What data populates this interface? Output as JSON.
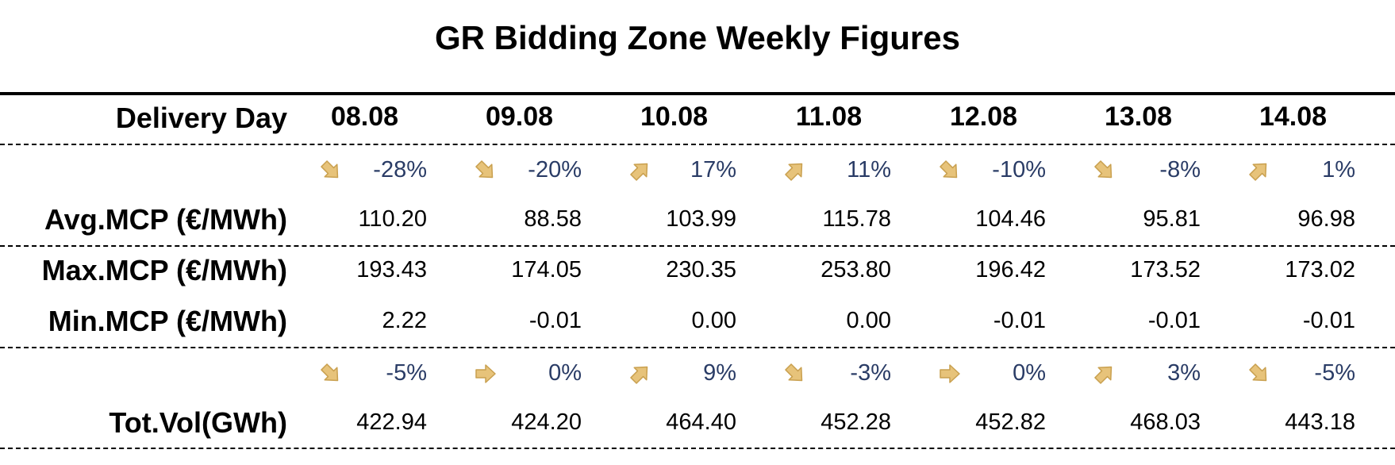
{
  "title": "GR Bidding Zone Weekly Figures",
  "colors": {
    "text": "#000000",
    "percent": "#2a3c66",
    "arrow_fill": "#e7c37a",
    "arrow_stroke": "#c9a04f"
  },
  "header": {
    "label": "Delivery Day",
    "days": [
      "08.08",
      "09.08",
      "10.08",
      "11.08",
      "12.08",
      "13.08",
      "14.08"
    ]
  },
  "mcp_change": {
    "values": [
      "-28%",
      "-20%",
      "17%",
      "11%",
      "-10%",
      "-8%",
      "1%"
    ],
    "icons": [
      "arrow-down-right-icon",
      "arrow-down-right-icon",
      "arrow-up-right-icon",
      "arrow-up-right-icon",
      "arrow-down-right-icon",
      "arrow-down-right-icon",
      "arrow-up-right-icon"
    ]
  },
  "avg_mcp": {
    "label": "Avg.MCP (€/MWh)",
    "values": [
      "110.20",
      "88.58",
      "103.99",
      "115.78",
      "104.46",
      "95.81",
      "96.98"
    ]
  },
  "max_mcp": {
    "label": "Max.MCP (€/MWh)",
    "values": [
      "193.43",
      "174.05",
      "230.35",
      "253.80",
      "196.42",
      "173.52",
      "173.02"
    ]
  },
  "min_mcp": {
    "label": "Min.MCP (€/MWh)",
    "values": [
      "2.22",
      "-0.01",
      "0.00",
      "0.00",
      "-0.01",
      "-0.01",
      "-0.01"
    ]
  },
  "vol_change": {
    "values": [
      "-5%",
      "0%",
      "9%",
      "-3%",
      "0%",
      "3%",
      "-5%"
    ],
    "icons": [
      "arrow-down-right-icon",
      "arrow-right-icon",
      "arrow-up-right-icon",
      "arrow-down-right-icon",
      "arrow-right-icon",
      "arrow-up-right-icon",
      "arrow-down-right-icon"
    ]
  },
  "tot_vol": {
    "label": "Tot.Vol(GWh)",
    "values": [
      "422.94",
      "424.20",
      "464.40",
      "452.28",
      "452.82",
      "468.03",
      "443.18"
    ]
  }
}
